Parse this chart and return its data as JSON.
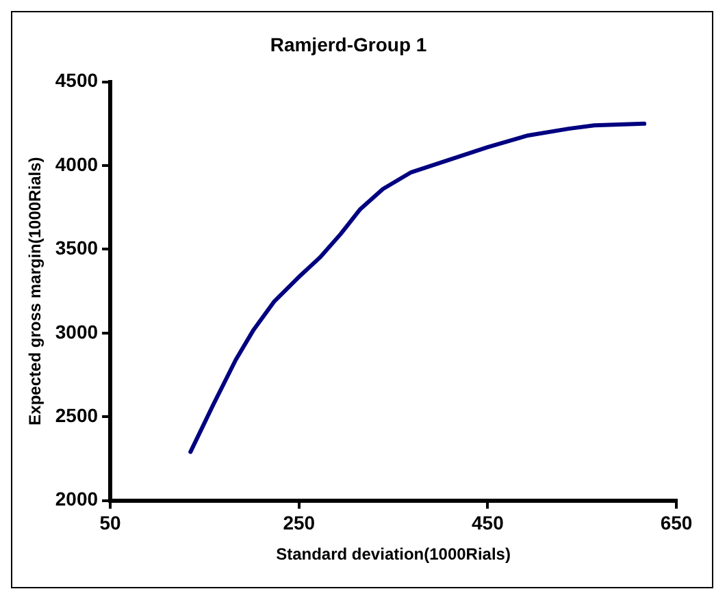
{
  "chart_data": {
    "type": "line",
    "title": "Ramjerd-Group 1",
    "xlabel": "Standard deviation(1000Rials)",
    "ylabel": "Expected gross margin(1000Rials)",
    "x": [
      135,
      159,
      183,
      202,
      224,
      249,
      272,
      294,
      315,
      339,
      369,
      407,
      450,
      493,
      536,
      563,
      616
    ],
    "series": [
      {
        "color": "#000080",
        "values": [
          2290,
          2570,
          2840,
          3020,
          3190,
          3330,
          3450,
          3590,
          3740,
          3860,
          3960,
          4030,
          4110,
          4180,
          4220,
          4240,
          4250
        ]
      }
    ],
    "xlim": [
      50,
      650
    ],
    "xticks": [
      50,
      250,
      450,
      650
    ],
    "ylim": [
      2000,
      4500
    ],
    "yticks": [
      2000,
      2500,
      3000,
      3500,
      4000,
      4500
    ],
    "grid": false,
    "legend": false,
    "marker": "none",
    "line_style": "solid"
  }
}
